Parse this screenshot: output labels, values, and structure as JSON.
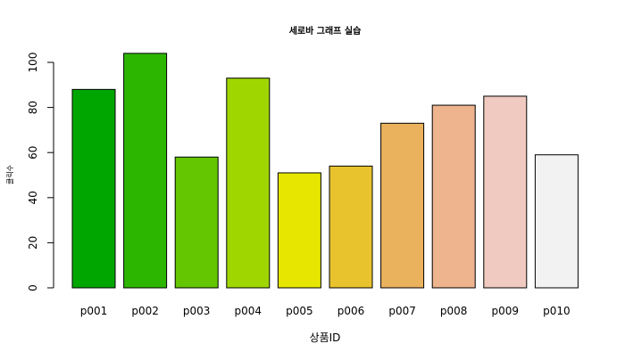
{
  "chart_data": {
    "type": "bar",
    "title": "세로바 그래프 실습",
    "xlabel": "상품ID",
    "ylabel": "클릭수",
    "categories": [
      "p001",
      "p002",
      "p003",
      "p004",
      "p005",
      "p006",
      "p007",
      "p008",
      "p009",
      "p010"
    ],
    "values": [
      88,
      104,
      58,
      93,
      51,
      54,
      73,
      81,
      85,
      59
    ],
    "colors": [
      "#00A600",
      "#2DB600",
      "#63C600",
      "#A0D600",
      "#E6E600",
      "#E8C32E",
      "#EBB25E",
      "#EDB48E",
      "#F0C9C0",
      "#F2F2F2"
    ],
    "ylim": [
      0,
      106
    ],
    "yticks": [
      0,
      20,
      40,
      60,
      80,
      100
    ],
    "grid": false,
    "legend": "none"
  }
}
